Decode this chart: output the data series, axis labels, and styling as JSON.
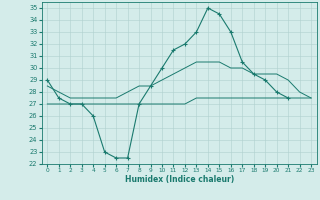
{
  "xlabel": "Humidex (Indice chaleur)",
  "x_values": [
    0,
    1,
    2,
    3,
    4,
    5,
    6,
    7,
    8,
    9,
    10,
    11,
    12,
    13,
    14,
    15,
    16,
    17,
    18,
    19,
    20,
    21,
    22,
    23
  ],
  "line1": [
    29,
    27.5,
    27,
    27,
    26,
    23,
    22.5,
    22.5,
    27,
    28.5,
    30,
    31.5,
    32,
    33,
    35,
    34.5,
    33,
    30.5,
    29.5,
    29,
    28,
    27.5,
    null,
    null
  ],
  "line2": [
    28.5,
    28,
    27.5,
    27.5,
    27.5,
    27.5,
    27.5,
    28,
    28.5,
    28.5,
    29,
    29.5,
    30,
    30.5,
    30.5,
    30.5,
    30,
    30,
    29.5,
    29.5,
    29.5,
    29,
    28,
    27.5
  ],
  "line3": [
    27,
    27,
    27,
    27,
    27,
    27,
    27,
    27,
    27,
    27,
    27,
    27,
    27,
    27.5,
    27.5,
    27.5,
    27.5,
    27.5,
    27.5,
    27.5,
    27.5,
    27.5,
    27.5,
    27.5
  ],
  "line_color": "#1a7a6e",
  "bg_color": "#d4ecea",
  "grid_color": "#b0d0ce",
  "ylim": [
    22,
    35.5
  ],
  "yticks": [
    22,
    23,
    24,
    25,
    26,
    27,
    28,
    29,
    30,
    31,
    32,
    33,
    34,
    35
  ],
  "xticks": [
    0,
    1,
    2,
    3,
    4,
    5,
    6,
    7,
    8,
    9,
    10,
    11,
    12,
    13,
    14,
    15,
    16,
    17,
    18,
    19,
    20,
    21,
    22,
    23
  ]
}
